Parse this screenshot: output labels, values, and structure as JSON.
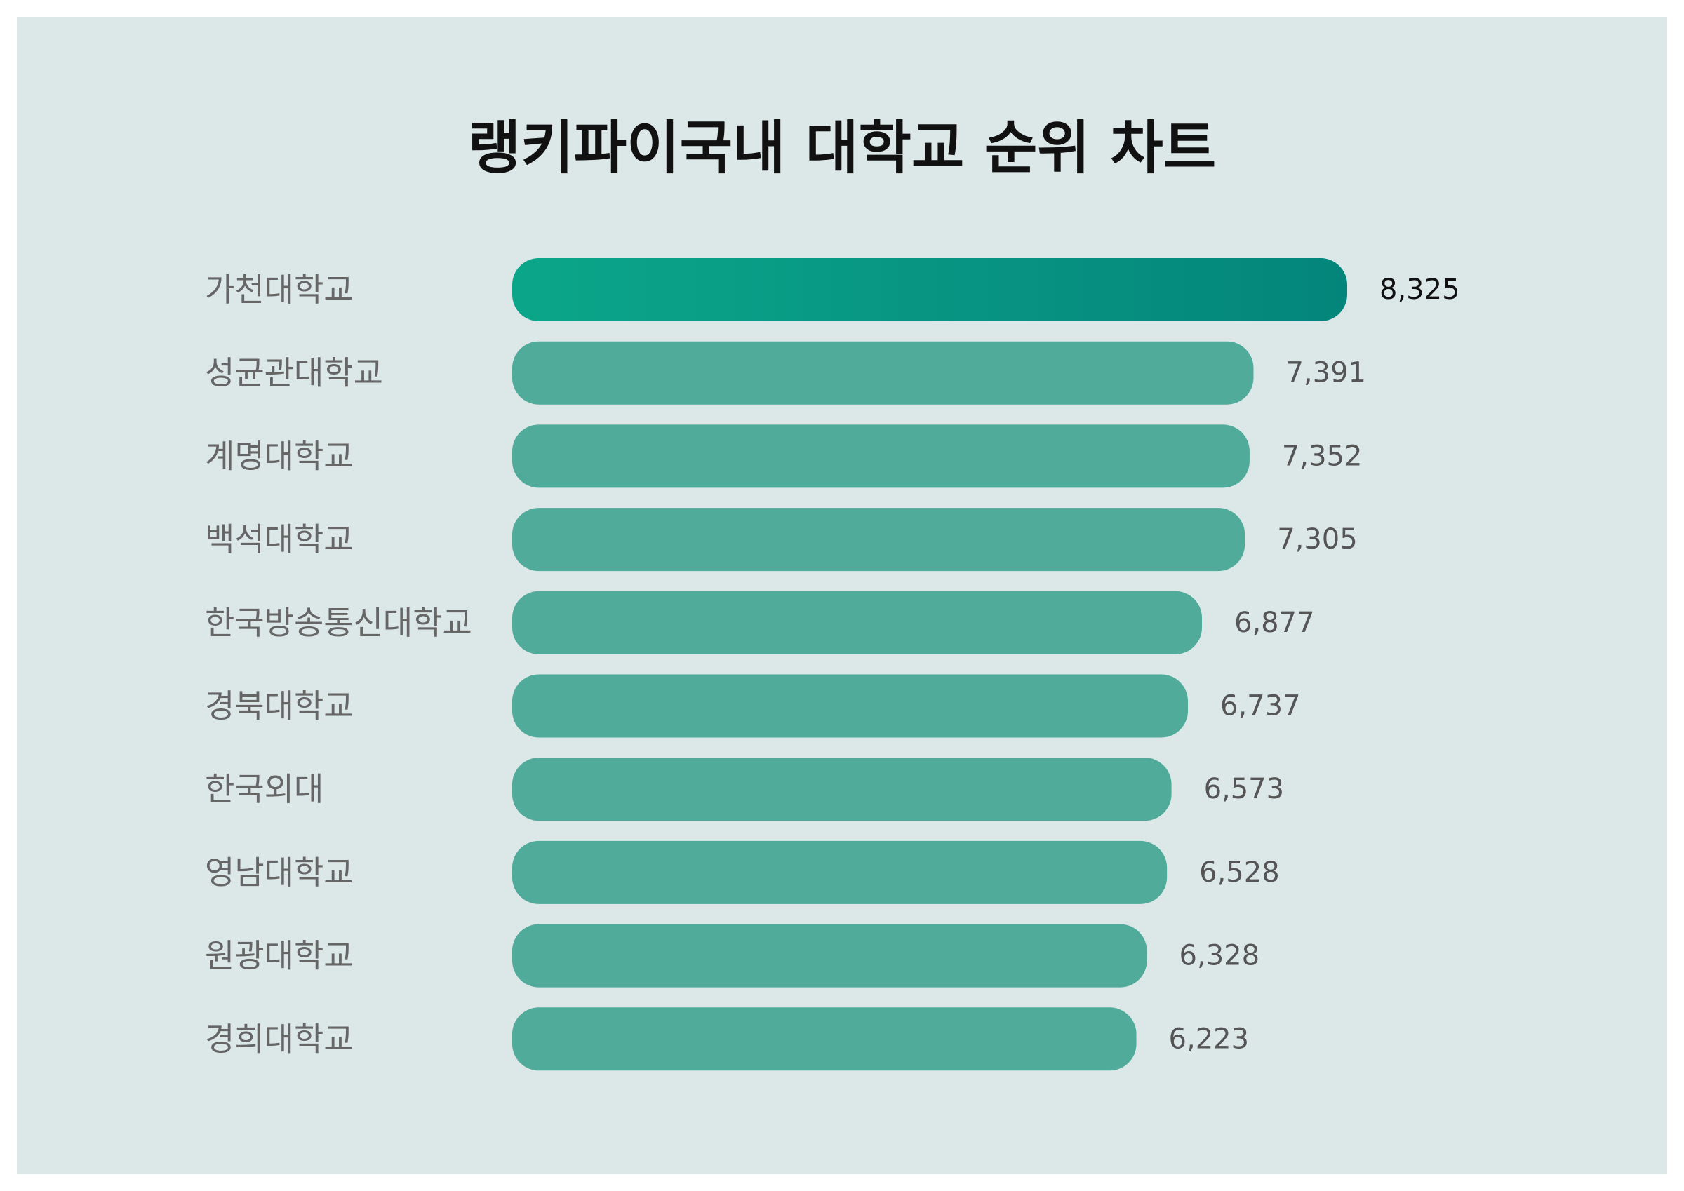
{
  "chart_data": {
    "type": "bar",
    "orientation": "horizontal",
    "title": "랭키파이국내 대학교 순위 차트",
    "categories": [
      "가천대학교",
      "성균관대학교",
      "계명대학교",
      "백석대학교",
      "한국방송통신대학교",
      "경북대학교",
      "한국외대",
      "영남대학교",
      "원광대학교",
      "경희대학교"
    ],
    "values": [
      8325,
      7391,
      7352,
      7305,
      6877,
      6737,
      6573,
      6528,
      6328,
      6223
    ],
    "value_labels": [
      "8,325",
      "7,391",
      "7,352",
      "7,305",
      "6,877",
      "6,737",
      "6,573",
      "6,528",
      "6,328",
      "6,223"
    ],
    "xlabel": "",
    "ylabel": "",
    "grid": false,
    "legend": "none"
  },
  "colors": {
    "background": "#dce7e8",
    "bar": "#50ab9a",
    "top_bar_gradient_start": "#0ba68a",
    "top_bar_gradient_end": "#04857b"
  }
}
